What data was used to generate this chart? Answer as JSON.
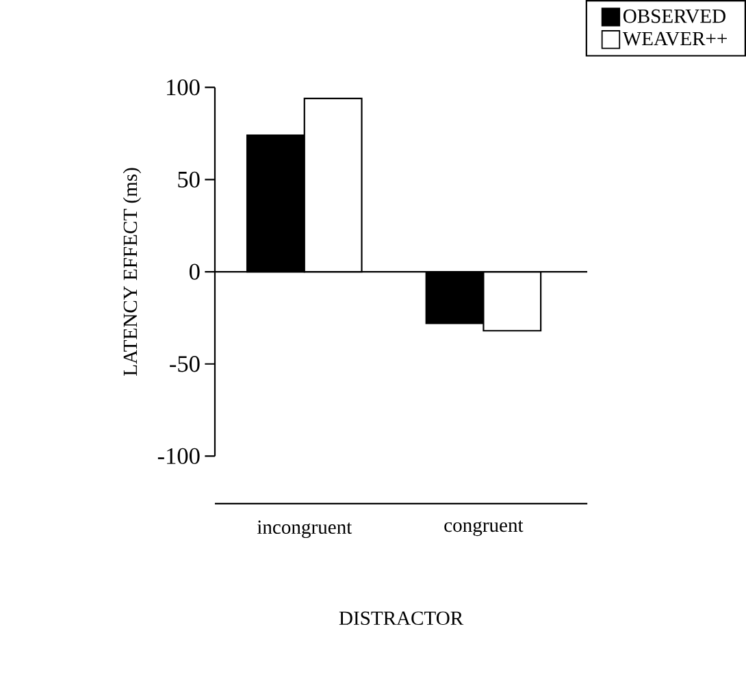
{
  "chart_data": {
    "type": "bar",
    "xlabel": "DISTRACTOR",
    "ylabel": "LATENCY EFFECT (ms)",
    "categories": [
      "incongruent",
      "congruent"
    ],
    "series": [
      {
        "name": "OBSERVED",
        "color": "#000000",
        "values": [
          74,
          -28
        ]
      },
      {
        "name": "WEAVER++",
        "color": "#ffffff",
        "values": [
          94,
          -32
        ]
      }
    ],
    "ylim": [
      -100,
      100
    ],
    "yticks": [
      -100,
      -50,
      0,
      50,
      100
    ],
    "ref_lines": [
      {
        "axis": "y",
        "value": 0
      }
    ],
    "legend": "top right",
    "grid": false
  }
}
